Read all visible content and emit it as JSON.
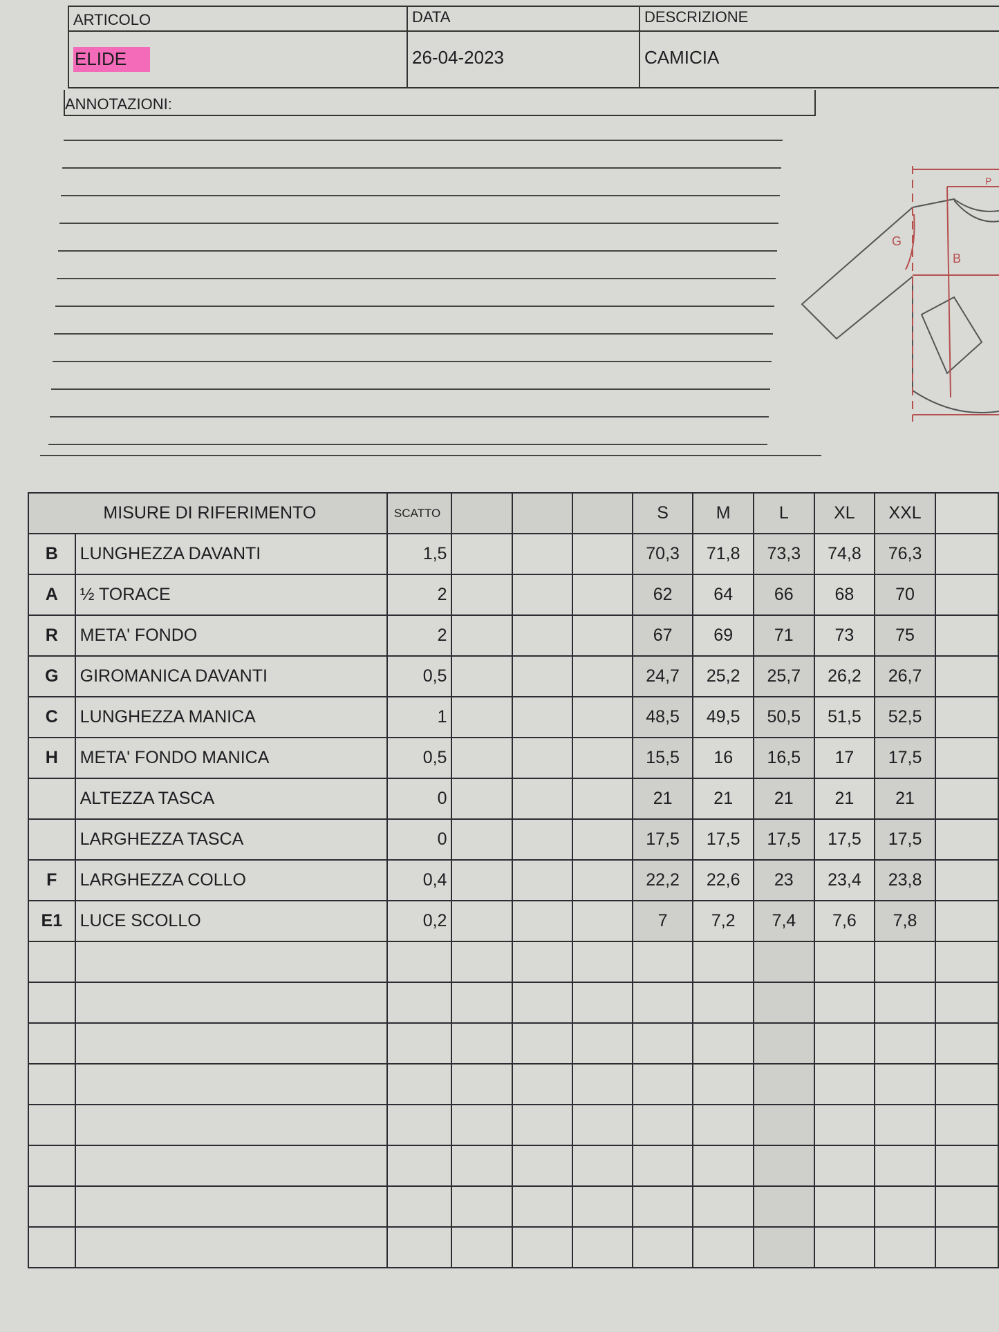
{
  "header": {
    "articolo_label": "ARTICOLO",
    "articolo_value": "ELIDE",
    "data_label": "DATA",
    "data_value": "26-04-2023",
    "descrizione_label": "DESCRIZIONE",
    "descrizione_value": "CAMICIA",
    "highlight_color": "#f46bb9"
  },
  "annotations": {
    "label": "ANNOTAZIONI:"
  },
  "sketch": {
    "labels": [
      "G",
      "B",
      "P"
    ],
    "line_color": "#b5504f"
  },
  "table": {
    "header": {
      "title": "MISURE DI RIFERIMENTO",
      "scatto": "SCATTO",
      "sizes": [
        "S",
        "M",
        "L",
        "XL",
        "XXL"
      ]
    },
    "rows": [
      {
        "letter": "B",
        "label": "LUNGHEZZA DAVANTI",
        "scatto": "1,5",
        "values": [
          "70,3",
          "71,8",
          "73,3",
          "74,8",
          "76,3"
        ]
      },
      {
        "letter": "A",
        "label": "½ TORACE",
        "scatto": "2",
        "values": [
          "62",
          "64",
          "66",
          "68",
          "70"
        ]
      },
      {
        "letter": "R",
        "label": "META' FONDO",
        "scatto": "2",
        "values": [
          "67",
          "69",
          "71",
          "73",
          "75"
        ]
      },
      {
        "letter": "G",
        "label": "GIROMANICA DAVANTI",
        "scatto": "0,5",
        "values": [
          "24,7",
          "25,2",
          "25,7",
          "26,2",
          "26,7"
        ]
      },
      {
        "letter": "C",
        "label": "LUNGHEZZA MANICA",
        "scatto": "1",
        "values": [
          "48,5",
          "49,5",
          "50,5",
          "51,5",
          "52,5"
        ]
      },
      {
        "letter": "H",
        "label": "META' FONDO MANICA",
        "scatto": "0,5",
        "values": [
          "15,5",
          "16",
          "16,5",
          "17",
          "17,5"
        ]
      },
      {
        "letter": "",
        "label": "ALTEZZA TASCA",
        "scatto": "0",
        "values": [
          "21",
          "21",
          "21",
          "21",
          "21"
        ]
      },
      {
        "letter": "",
        "label": "LARGHEZZA TASCA",
        "scatto": "0",
        "values": [
          "17,5",
          "17,5",
          "17,5",
          "17,5",
          "17,5"
        ]
      },
      {
        "letter": "F",
        "label": "LARGHEZZA COLLO",
        "scatto": "0,4",
        "values": [
          "22,2",
          "22,6",
          "23",
          "23,4",
          "23,8"
        ]
      },
      {
        "letter": "E1",
        "label": "LUCE SCOLLO",
        "scatto": "0,2",
        "values": [
          "7",
          "7,2",
          "7,4",
          "7,6",
          "7,8"
        ]
      }
    ]
  }
}
